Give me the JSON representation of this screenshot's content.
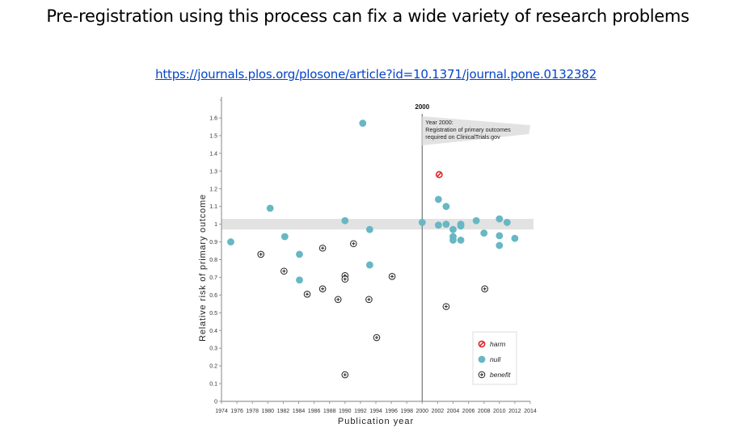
{
  "slide": {
    "title": "Pre-registration using this process can fix a wide variety of research problems",
    "link": "https://journals.plos.org/plosone/article?id=10.1371/journal.pone.0132382"
  },
  "chart_data": {
    "type": "scatter",
    "title": "",
    "xlabel": "Publication year",
    "ylabel": "Relative risk of primary outcome",
    "xlim": [
      1974,
      2014
    ],
    "ylim": [
      0,
      1.6
    ],
    "x_ticks": [
      1974,
      1976,
      1978,
      1980,
      1982,
      1984,
      1986,
      1988,
      1990,
      1992,
      1994,
      1996,
      1998,
      2000,
      2002,
      2004,
      2006,
      2008,
      2010,
      2012,
      2014
    ],
    "y_ticks": [
      0,
      0.1,
      0.2,
      0.3,
      0.4,
      0.5,
      0.6,
      0.7,
      0.8,
      0.9,
      1,
      1.1,
      1.2,
      1.3,
      1.4,
      1.5,
      1.6
    ],
    "null_band": [
      0.97,
      1.03
    ],
    "reference_line": {
      "x": 2000,
      "label": "2000"
    },
    "annotation": [
      "Year 2000:",
      "Registration of primary outcomes",
      "required on ClinicalTrials.gov"
    ],
    "legend": {
      "position": "lower right",
      "entries": [
        "harm",
        "null",
        "benefit"
      ]
    },
    "colors": {
      "harm": "#e0262b",
      "null": "#67b7c4",
      "benefit": "#222222",
      "band": "#e2e2e2"
    },
    "series": [
      {
        "name": "harm",
        "points": [
          [
            2002.2,
            1.28
          ]
        ]
      },
      {
        "name": "null",
        "points": [
          [
            1975.2,
            0.9
          ],
          [
            1980.3,
            1.09
          ],
          [
            1982.2,
            0.93
          ],
          [
            1984.1,
            0.83
          ],
          [
            1984.1,
            0.685
          ],
          [
            1990,
            1.02
          ],
          [
            1992.3,
            1.57
          ],
          [
            1993.2,
            0.97
          ],
          [
            1993.2,
            0.77
          ],
          [
            2000,
            1.01
          ],
          [
            2002.1,
            1.14
          ],
          [
            2003.1,
            1.1
          ],
          [
            2002.1,
            0.995
          ],
          [
            2003.1,
            1.0
          ],
          [
            2004,
            0.97
          ],
          [
            2004,
            0.93
          ],
          [
            2004,
            0.91
          ],
          [
            2005,
            1.0
          ],
          [
            2005,
            0.99
          ],
          [
            2005,
            0.91
          ],
          [
            2007,
            1.02
          ],
          [
            2008,
            0.95
          ],
          [
            2010,
            1.03
          ],
          [
            2011,
            1.01
          ],
          [
            2010,
            0.935
          ],
          [
            2010,
            0.88
          ],
          [
            2012,
            0.92
          ]
        ]
      },
      {
        "name": "benefit",
        "points": [
          [
            1979.1,
            0.83
          ],
          [
            1982.1,
            0.735
          ],
          [
            1985.1,
            0.605
          ],
          [
            1987.1,
            0.865
          ],
          [
            1987.1,
            0.635
          ],
          [
            1989.1,
            0.575
          ],
          [
            1990,
            0.71
          ],
          [
            1990,
            0.69
          ],
          [
            1990,
            0.15
          ],
          [
            1991.1,
            0.89
          ],
          [
            1993.1,
            0.575
          ],
          [
            1994.1,
            0.36
          ],
          [
            1996.1,
            0.705
          ],
          [
            2003.1,
            0.535
          ],
          [
            2008.1,
            0.635
          ]
        ]
      }
    ]
  }
}
